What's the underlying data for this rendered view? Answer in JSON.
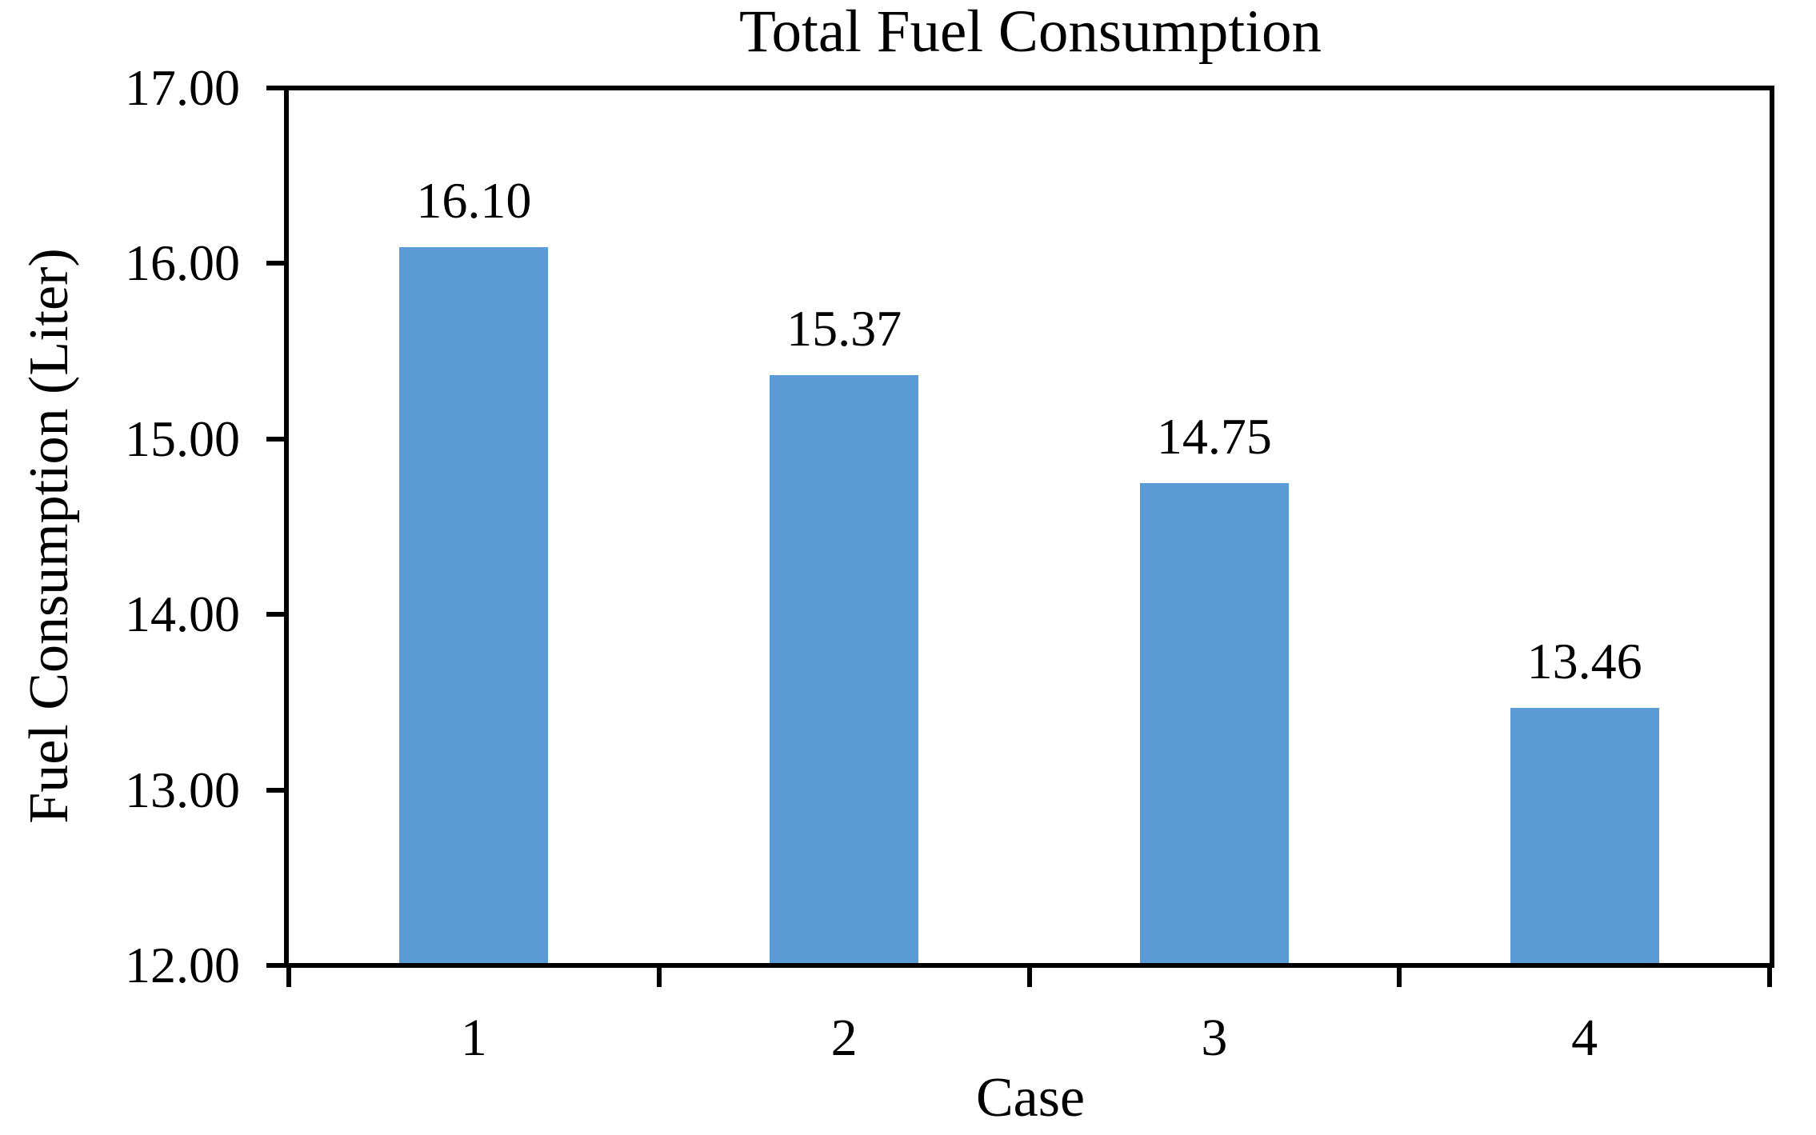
{
  "chart_data": {
    "type": "bar",
    "title": "Total Fuel Consumption",
    "xlabel": "Case",
    "ylabel": "Fuel Consumption (Liter)",
    "categories": [
      "1",
      "2",
      "3",
      "4"
    ],
    "values": [
      16.1,
      15.37,
      14.75,
      13.46
    ],
    "value_labels": [
      "16.10",
      "15.37",
      "14.75",
      "13.46"
    ],
    "ylim": [
      12,
      17
    ],
    "yticks": [
      {
        "value": 17,
        "label": "17.00"
      },
      {
        "value": 16,
        "label": "16.00"
      },
      {
        "value": 15,
        "label": "15.00"
      },
      {
        "value": 14,
        "label": "14.00"
      },
      {
        "value": 13,
        "label": "13.00"
      },
      {
        "value": 12,
        "label": "12.00"
      }
    ],
    "bar_color": "#5B9BD5",
    "axis_color": "#000000",
    "grid": "off",
    "legend": "none"
  }
}
